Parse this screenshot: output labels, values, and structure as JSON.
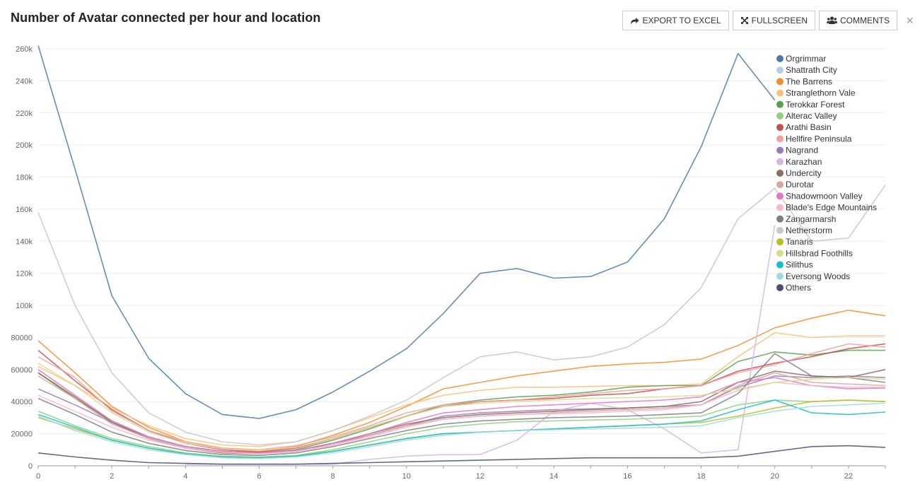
{
  "header": {
    "title": "Number of Avatar connected per hour and location",
    "export_label": "EXPORT TO EXCEL",
    "fullscreen_label": "FULLSCREEN",
    "comments_label": "COMMENTS",
    "close_symbol": "×"
  },
  "chart_data": {
    "type": "line",
    "title": "Number of Avatar connected per hour and location",
    "xlabel": "",
    "ylabel": "",
    "xlim": [
      0,
      23
    ],
    "ylim": [
      0,
      260000
    ],
    "x_ticks": [
      0,
      2,
      4,
      6,
      8,
      10,
      12,
      14,
      16,
      18,
      20,
      22
    ],
    "y_ticks": [
      0,
      20000,
      40000,
      60000,
      80000,
      100000,
      120000,
      140000,
      160000,
      180000,
      200000,
      220000,
      240000,
      260000
    ],
    "y_tick_labels": [
      "0",
      "20000",
      "40000",
      "60000",
      "80000",
      "100k",
      "120k",
      "140k",
      "160k",
      "180k",
      "200k",
      "220k",
      "240k",
      "260k"
    ],
    "grid": "horizontal",
    "legend_position": "top-right",
    "x": [
      0,
      1,
      2,
      3,
      4,
      5,
      6,
      7,
      8,
      9,
      10,
      11,
      12,
      13,
      14,
      15,
      16,
      17,
      18,
      19,
      20,
      21,
      22,
      23
    ],
    "series": [
      {
        "name": "Orgrimmar",
        "color": "#4e79a7",
        "values": [
          262000,
          185000,
          106000,
          67000,
          45000,
          32000,
          29500,
          35000,
          46000,
          59000,
          73000,
          95000,
          120000,
          123000,
          117000,
          118000,
          127000,
          154000,
          199000,
          257000,
          228000,
          null,
          null,
          null
        ]
      },
      {
        "name": "Shattrath City",
        "color": "#b8cce4",
        "values": [
          null,
          null,
          null,
          null,
          null,
          null,
          null,
          null,
          null,
          null,
          null,
          null,
          null,
          null,
          null,
          null,
          null,
          null,
          null,
          null,
          null,
          null,
          null,
          null
        ]
      },
      {
        "name": "The Barrens",
        "color": "#f28e2b",
        "values": [
          78000,
          58000,
          37000,
          24000,
          15000,
          11000,
          9000,
          12000,
          19000,
          27000,
          37000,
          48000,
          52000,
          56000,
          59000,
          62000,
          63500,
          64500,
          66500,
          75000,
          86000,
          92000,
          97000,
          93500
        ]
      },
      {
        "name": "Stranglethorn Vale",
        "color": "#ffbe7d",
        "values": [
          62000,
          50000,
          36000,
          25000,
          17000,
          13000,
          12000,
          15000,
          22000,
          30000,
          38000,
          44000,
          47000,
          49000,
          49000,
          49500,
          50000,
          50000,
          51000,
          68000,
          83000,
          80000,
          81000,
          81000
        ]
      },
      {
        "name": "Terokkar Forest",
        "color": "#59a14f",
        "values": [
          58000,
          42000,
          28000,
          18000,
          12000,
          9000,
          8000,
          10000,
          16000,
          23000,
          31000,
          38000,
          41000,
          43000,
          44000,
          46000,
          49000,
          50000,
          50000,
          65000,
          71000,
          69000,
          72000,
          72000
        ]
      },
      {
        "name": "Alterac Valley",
        "color": "#8cd17d",
        "values": [
          34000,
          25000,
          17000,
          12000,
          8000,
          6000,
          5500,
          6500,
          10000,
          15000,
          20000,
          24000,
          26000,
          27500,
          28000,
          28500,
          29000,
          30000,
          31000,
          38000,
          41000,
          40000,
          41000,
          40000
        ]
      },
      {
        "name": "Arathi Basin",
        "color": "#c44e52",
        "values": [
          72000,
          53000,
          35000,
          22000,
          14000,
          10000,
          8500,
          11000,
          17000,
          24000,
          31000,
          37000,
          40000,
          41000,
          42000,
          44000,
          45000,
          48000,
          50000,
          59000,
          64000,
          68000,
          73000,
          76000
        ]
      },
      {
        "name": "Hellfire Peninsula",
        "color": "#f4a09c",
        "values": [
          68000,
          55000,
          34000,
          22000,
          15000,
          11000,
          10000,
          12500,
          18000,
          25000,
          33000,
          38000,
          40000,
          41000,
          43000,
          45000,
          47000,
          48000,
          50000,
          58000,
          63000,
          70000,
          76000,
          74000
        ]
      },
      {
        "name": "Nagrand",
        "color": "#9d7ab5",
        "values": [
          48000,
          38000,
          27000,
          18000,
          12000,
          9000,
          8000,
          9500,
          14000,
          19000,
          25000,
          31000,
          33000,
          34000,
          35000,
          35500,
          36000,
          37000,
          38000,
          49000,
          56000,
          55000,
          56000,
          55000
        ]
      },
      {
        "name": "Karazhan",
        "color": "#d4b7e1",
        "values": [
          null,
          null,
          null,
          null,
          1000,
          1000,
          1000,
          1000,
          1000,
          4000,
          6000,
          7000,
          7000,
          16000,
          34000,
          39000,
          35000,
          23000,
          8000,
          10000,
          150000,
          null,
          null,
          null
        ]
      },
      {
        "name": "Undercity",
        "color": "#8c6d62",
        "values": [
          58000,
          43000,
          27000,
          17000,
          11000,
          8000,
          7500,
          9000,
          14000,
          20000,
          26000,
          30000,
          32000,
          33000,
          34000,
          35000,
          36000,
          37000,
          40000,
          52000,
          59000,
          56000,
          55000,
          60000
        ]
      },
      {
        "name": "Durotar",
        "color": "#d7a89b",
        "values": [
          56000,
          42000,
          26000,
          17000,
          11000,
          8500,
          7500,
          9000,
          13000,
          19000,
          25000,
          29000,
          31000,
          32000,
          33000,
          34000,
          35000,
          36000,
          38000,
          50000,
          58000,
          52000,
          51000,
          50000
        ]
      },
      {
        "name": "Shadowmoon Valley",
        "color": "#e377c2",
        "values": [
          60000,
          44000,
          28000,
          18000,
          12000,
          9000,
          8000,
          9500,
          14000,
          20000,
          27000,
          33000,
          35000,
          37000,
          38000,
          39000,
          40000,
          41000,
          43000,
          52000,
          55000,
          50000,
          48000,
          48500
        ]
      },
      {
        "name": "Blade's Edge Mountains",
        "color": "#f7b6d2",
        "values": [
          44000,
          34000,
          24000,
          16000,
          11000,
          8500,
          7500,
          9000,
          13000,
          18000,
          24000,
          29000,
          31000,
          32000,
          32500,
          33000,
          34000,
          35000,
          38000,
          47000,
          52000,
          50000,
          49000,
          49000
        ]
      },
      {
        "name": "Zangarmarsh",
        "color": "#7f7f7f",
        "values": [
          42000,
          32000,
          21000,
          14000,
          9500,
          7000,
          6500,
          8000,
          12000,
          17000,
          22000,
          26000,
          28000,
          29000,
          30000,
          30500,
          31000,
          32000,
          33000,
          45000,
          70000,
          56000,
          55000,
          52000
        ]
      },
      {
        "name": "Netherstorm",
        "color": "#c7c7c7",
        "values": [
          158000,
          100000,
          58000,
          33000,
          21000,
          15000,
          13000,
          15000,
          22000,
          31000,
          41000,
          55000,
          68000,
          71000,
          66000,
          68000,
          74000,
          88000,
          111000,
          154000,
          173000,
          140000,
          142000,
          175000
        ]
      },
      {
        "name": "Tanaris",
        "color": "#bcbd22",
        "values": [
          30000,
          23000,
          16000,
          11000,
          7500,
          5500,
          5000,
          6000,
          9000,
          13000,
          17000,
          20000,
          21000,
          22000,
          23000,
          24000,
          25000,
          26000,
          27000,
          31000,
          36000,
          40000,
          41000,
          40000
        ]
      },
      {
        "name": "Hillsbrad Foothills",
        "color": "#dbdb8d",
        "values": [
          64000,
          50000,
          33000,
          21000,
          14000,
          10500,
          9500,
          11500,
          17000,
          24000,
          31000,
          37000,
          39000,
          40000,
          41000,
          42000,
          42500,
          43000,
          44000,
          48000,
          52000,
          54000,
          55000,
          54000
        ]
      },
      {
        "name": "Silithus",
        "color": "#17becf",
        "values": [
          32000,
          24000,
          16000,
          11000,
          7500,
          5500,
          5000,
          6000,
          9000,
          13000,
          17000,
          20000,
          21000,
          22000,
          23000,
          24000,
          25000,
          26000,
          28000,
          35000,
          41000,
          33000,
          32000,
          33500
        ]
      },
      {
        "name": "Eversong Woods",
        "color": "#9edae5",
        "values": [
          31000,
          22000,
          15000,
          10000,
          7000,
          5000,
          4500,
          5500,
          8000,
          12000,
          16000,
          19000,
          21000,
          22000,
          22500,
          23000,
          23500,
          24000,
          25000,
          30000,
          34000,
          37000,
          38000,
          39000
        ]
      },
      {
        "name": "Others",
        "color": "#4b4f6e",
        "values": [
          8000,
          5500,
          3500,
          2000,
          1500,
          1000,
          1000,
          1000,
          1500,
          2000,
          2500,
          3000,
          3500,
          4000,
          4500,
          5000,
          5000,
          5000,
          5000,
          6000,
          9000,
          12000,
          12500,
          11500
        ]
      }
    ]
  }
}
